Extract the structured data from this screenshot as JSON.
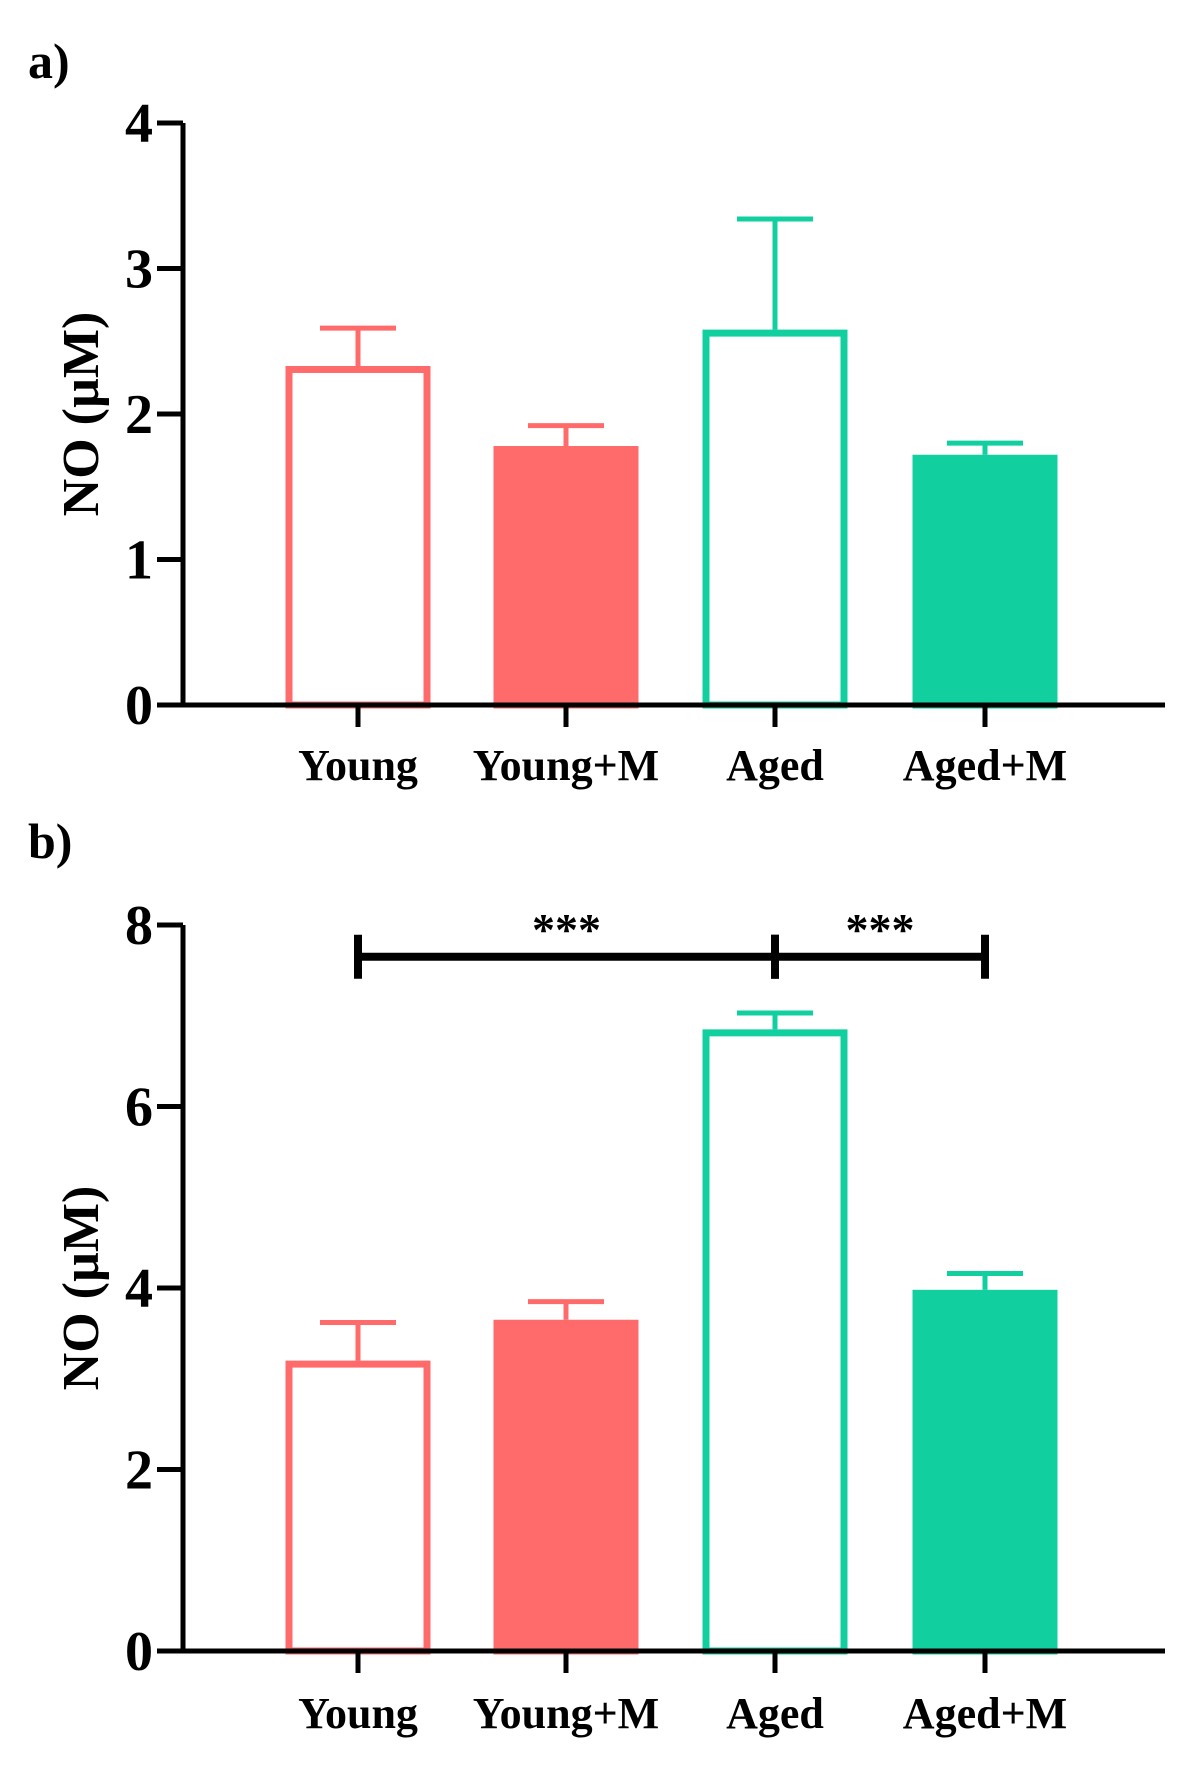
{
  "chart_data": [
    {
      "type": "bar",
      "panel": "a)",
      "categories": [
        "Young",
        "Young+M",
        "Aged",
        "Aged+M"
      ],
      "values": [
        2.33,
        1.78,
        2.58,
        1.72
      ],
      "errors": [
        0.26,
        0.14,
        0.76,
        0.08
      ],
      "fills": [
        "none",
        "#ff6b6b",
        "none",
        "#12cfa0"
      ],
      "strokes": [
        "#ff6b6b",
        "#ff6b6b",
        "#12cfa0",
        "#12cfa0"
      ],
      "ylabel": "NO (µM)",
      "xlabel": "",
      "ylim": [
        0,
        4
      ],
      "yticks": [
        0,
        1,
        2,
        3,
        4
      ],
      "significance": []
    },
    {
      "type": "bar",
      "panel": "b)",
      "categories": [
        "Young",
        "Young+M",
        "Aged",
        "Aged+M"
      ],
      "values": [
        3.2,
        3.65,
        6.85,
        3.98
      ],
      "errors": [
        0.42,
        0.2,
        0.18,
        0.18
      ],
      "fills": [
        "none",
        "#ff6b6b",
        "none",
        "#12cfa0"
      ],
      "strokes": [
        "#ff6b6b",
        "#ff6b6b",
        "#12cfa0",
        "#12cfa0"
      ],
      "ylabel": "NO (µM)",
      "xlabel": "",
      "ylim": [
        0,
        8
      ],
      "yticks": [
        0,
        2,
        4,
        6,
        8
      ],
      "significance": [
        {
          "from": 0,
          "to": 2,
          "label": "***",
          "y": 7.65
        },
        {
          "from": 2,
          "to": 3,
          "label": "***",
          "y": 7.65
        }
      ]
    }
  ]
}
